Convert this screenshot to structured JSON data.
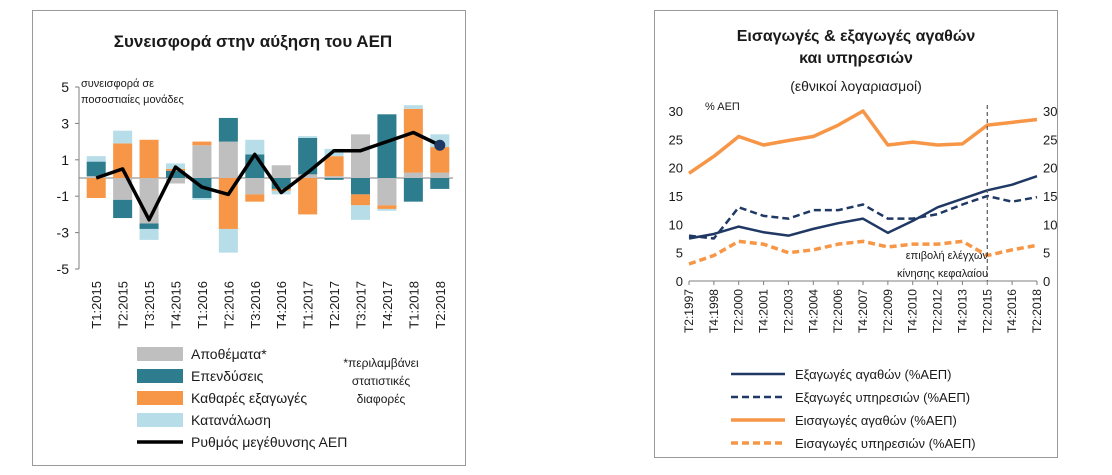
{
  "chart_data": [
    {
      "type": "bar",
      "title": "Συνεισφορά στην αύξηση του ΑΕΠ",
      "ylabel": "συνεισφορά σε ποσοστιαίες μονάδες",
      "ylim": [
        -5,
        5
      ],
      "yticks": [
        "5",
        "3",
        "1",
        "-1",
        "-3",
        "-5"
      ],
      "categories": [
        "T1:2015",
        "T2:2015",
        "T3:2015",
        "T4:2015",
        "T1:2016",
        "T2:2016",
        "T3:2016",
        "T4:2016",
        "T1:2017",
        "T2:2017",
        "T3:2017",
        "T4:2017",
        "T1:2018",
        "T2:2018"
      ],
      "stacked": true,
      "series": [
        {
          "name": "Αποθέματα*",
          "color": "#bfbfbf",
          "values": [
            0.1,
            -1.2,
            -2.5,
            -0.3,
            1.8,
            2.0,
            -0.9,
            0.7,
            0.2,
            0.1,
            2.4,
            -1.5,
            0.3,
            0.3
          ]
        },
        {
          "name": "Επενδύσεις",
          "color": "#2e7d8f",
          "values": [
            0.8,
            -1.0,
            -0.3,
            0.4,
            -1.1,
            1.3,
            1.3,
            -0.6,
            2.0,
            -0.1,
            -0.9,
            3.5,
            -1.3,
            -0.6
          ]
        },
        {
          "name": "Καθαρές εξαγωγές",
          "color": "#f79646",
          "values": [
            -1.1,
            1.9,
            2.1,
            0.1,
            0.2,
            -2.8,
            -0.4,
            -0.1,
            -2.0,
            1.1,
            -0.6,
            -0.2,
            3.5,
            1.4
          ]
        },
        {
          "name": "Κατανάλωση",
          "color": "#b7dde8",
          "values": [
            0.3,
            0.7,
            -0.6,
            0.3,
            -0.1,
            -1.3,
            0.8,
            -0.2,
            0.1,
            0.4,
            -0.8,
            -0.1,
            0.2,
            0.7
          ]
        }
      ],
      "line": {
        "name": "Ρυθμός μεγέθυνσης ΑΕΠ",
        "color": "#000000",
        "values": [
          0.0,
          0.5,
          -2.3,
          0.6,
          -0.5,
          -0.9,
          1.3,
          -0.8,
          0.3,
          1.5,
          1.5,
          2.0,
          2.5,
          1.8
        ]
      },
      "footnote": "*περιλαμβάνει στατιστικές διαφορές",
      "legend": "bottom"
    },
    {
      "type": "line",
      "title": "Εισαγωγές & εξαγωγές αγαθών και υπηρεσιών",
      "subtitle": "(εθνικοί λογαριασμοί)",
      "ylabel": "% ΑΕΠ",
      "ylim": [
        0,
        30
      ],
      "yticks": [
        "30",
        "25",
        "20",
        "15",
        "10",
        "5",
        "0"
      ],
      "x": [
        "T2:1997",
        "T4:1998",
        "T2:2000",
        "T4:2001",
        "T2:2003",
        "T4:2004",
        "T2:2006",
        "T4:2007",
        "T2:2009",
        "T4:2010",
        "T2:2012",
        "T4:2013",
        "T2:2015",
        "T4:2016",
        "T2:2018"
      ],
      "series": [
        {
          "name": "Εξαγωγές αγαθών (%ΑΕΠ)",
          "color": "#1f3864",
          "dash": "solid",
          "values": [
            7.5,
            8.3,
            9.6,
            8.6,
            8.0,
            9.2,
            10.2,
            11.0,
            8.5,
            10.6,
            13.0,
            14.5,
            16.0,
            17.0,
            18.5
          ]
        },
        {
          "name": "Εξαγωγές υπηρεσιών (%ΑΕΠ)",
          "color": "#1f3864",
          "dash": "dashed",
          "values": [
            8.0,
            7.5,
            13.0,
            11.5,
            11.0,
            12.5,
            12.5,
            13.5,
            11.0,
            11.0,
            11.8,
            13.5,
            15.0,
            14.0,
            14.8
          ]
        },
        {
          "name": "Εισαγωγές αγαθών (%ΑΕΠ)",
          "color": "#f79646",
          "dash": "solid",
          "values": [
            19.0,
            22.0,
            25.5,
            24.0,
            24.8,
            25.5,
            27.5,
            30.0,
            24.0,
            24.5,
            24.0,
            24.2,
            27.5,
            28.0,
            28.5
          ]
        },
        {
          "name": "Εισαγωγές υπηρεσιών (%ΑΕΠ)",
          "color": "#f79646",
          "dash": "dashed",
          "values": [
            3.0,
            4.5,
            7.0,
            6.5,
            5.0,
            5.5,
            6.5,
            7.0,
            6.0,
            6.5,
            6.5,
            7.0,
            4.5,
            5.5,
            6.3
          ]
        }
      ],
      "vline": {
        "at": "T2:2015",
        "label": "επιβολή ελέγχων κίνησης κεφαλαίου"
      },
      "legend": "bottom"
    }
  ]
}
